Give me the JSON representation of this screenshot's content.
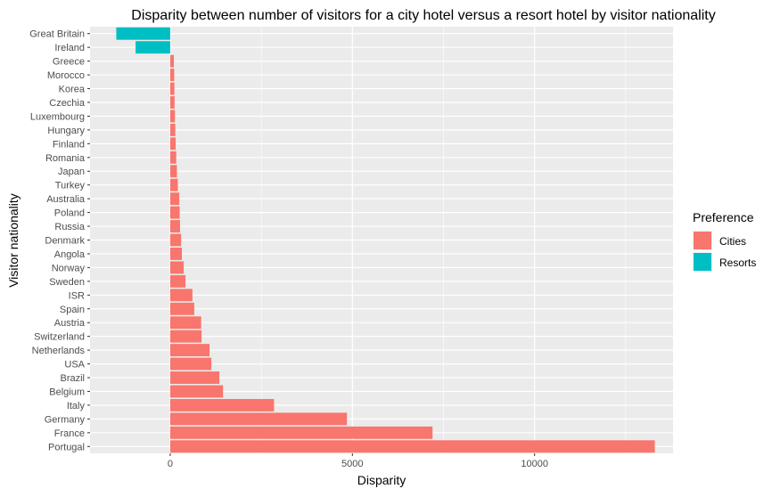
{
  "chart_data": {
    "type": "bar",
    "orientation": "horizontal",
    "title": "Disparity between number of visitors for a city hotel versus a resort hotel by visitor nationality",
    "xlabel": "Disparity",
    "ylabel": "Visitor nationality",
    "xlim": [
      -2200,
      13800
    ],
    "x_ticks": [
      0,
      5000,
      10000
    ],
    "x_tick_labels": [
      "0",
      "5000",
      "10000"
    ],
    "grid": true,
    "legend": {
      "title": "Preference",
      "position": "right",
      "entries": [
        {
          "name": "Cities",
          "color": "#F8766D"
        },
        {
          "name": "Resorts",
          "color": "#00BFC4"
        }
      ]
    },
    "categories": [
      "Great Britain",
      "Ireland",
      "Greece",
      "Morocco",
      "Korea",
      "Czechia",
      "Luxembourg",
      "Hungary",
      "Finland",
      "Romania",
      "Japan",
      "Turkey",
      "Australia",
      "Poland",
      "Russia",
      "Denmark",
      "Angola",
      "Norway",
      "Sweden",
      "ISR",
      "Spain",
      "Austria",
      "Switzerland",
      "Netherlands",
      "USA",
      "Brazil",
      "Belgium",
      "Italy",
      "Germany",
      "France",
      "Portugal"
    ],
    "values": [
      -1480,
      -950,
      100,
      110,
      115,
      120,
      130,
      140,
      150,
      165,
      185,
      210,
      250,
      260,
      270,
      300,
      320,
      370,
      420,
      610,
      660,
      850,
      860,
      1080,
      1130,
      1350,
      1450,
      2850,
      4850,
      7200,
      13300
    ],
    "preference": [
      "Resorts",
      "Resorts",
      "Cities",
      "Cities",
      "Cities",
      "Cities",
      "Cities",
      "Cities",
      "Cities",
      "Cities",
      "Cities",
      "Cities",
      "Cities",
      "Cities",
      "Cities",
      "Cities",
      "Cities",
      "Cities",
      "Cities",
      "Cities",
      "Cities",
      "Cities",
      "Cities",
      "Cities",
      "Cities",
      "Cities",
      "Cities",
      "Cities",
      "Cities",
      "Cities",
      "Cities"
    ]
  }
}
